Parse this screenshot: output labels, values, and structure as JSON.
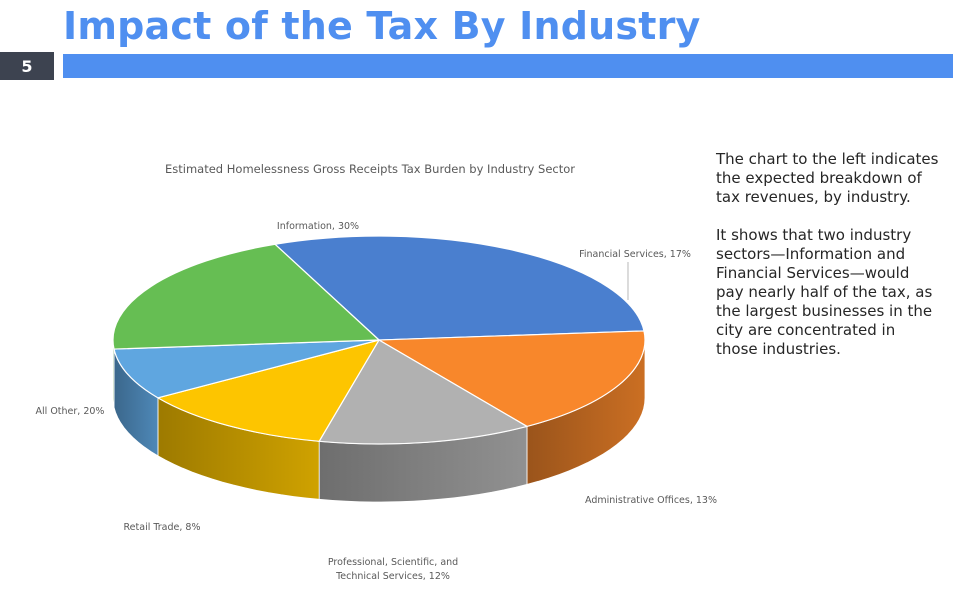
{
  "slide": {
    "title": "Impact of the Tax By Industry",
    "number": "5"
  },
  "description": {
    "p1": "The chart to the left indicates the expected breakdown of tax revenues, by industry.",
    "p2": "It shows that two industry sectors—Information and Financial Services—would pay nearly half of the tax, as the largest businesses in the city are concentrated in those industries."
  },
  "chart_data": {
    "type": "pie",
    "title": "Estimated Homelessness Gross Receipts Tax Burden by Industry Sector",
    "style": "3d",
    "slices": [
      {
        "label": "Information",
        "value": 30,
        "color": "#4a7fcf"
      },
      {
        "label": "Financial Services",
        "value": 17,
        "color": "#f8872b"
      },
      {
        "label": "Administrative Offices",
        "value": 13,
        "color": "#b1b1b1"
      },
      {
        "label": "Professional, Scientific, and Technical Services",
        "value": 12,
        "color": "#fdc500"
      },
      {
        "label": "Retail Trade",
        "value": 8,
        "color": "#5fa6e0"
      },
      {
        "label": "All Other",
        "value": 20,
        "color": "#66be53"
      }
    ],
    "data_labels": [
      "Information, 30%",
      "Financial Services, 17%",
      "Administrative  Offices, 13%",
      "Professional, Scientific, and",
      "Technical Services, 12%",
      "Retail Trade, 8%",
      "All Other, 20%"
    ]
  }
}
